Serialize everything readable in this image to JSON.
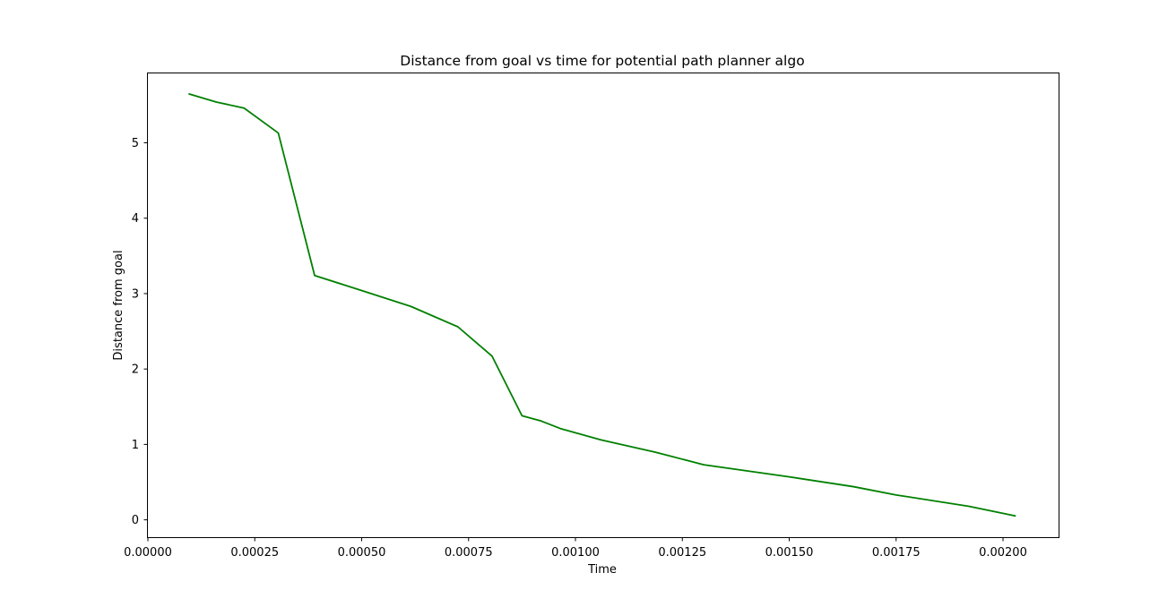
{
  "chart_data": {
    "type": "line",
    "title": "Distance from goal vs time for potential path planner algo",
    "xlabel": "Time",
    "ylabel": "Distance from goal",
    "xlim": [
      0.0,
      0.00213
    ],
    "ylim": [
      -0.23,
      5.92
    ],
    "grid": false,
    "line_color": "#008000",
    "x_ticks": [
      {
        "value": 0.0,
        "label": "0.00000"
      },
      {
        "value": 0.00025,
        "label": "0.00025"
      },
      {
        "value": 0.0005,
        "label": "0.00050"
      },
      {
        "value": 0.00075,
        "label": "0.00075"
      },
      {
        "value": 0.001,
        "label": "0.00100"
      },
      {
        "value": 0.00125,
        "label": "0.00125"
      },
      {
        "value": 0.0015,
        "label": "0.00150"
      },
      {
        "value": 0.00175,
        "label": "0.00175"
      },
      {
        "value": 0.002,
        "label": "0.00200"
      }
    ],
    "y_ticks": [
      {
        "value": 0,
        "label": "0"
      },
      {
        "value": 1,
        "label": "1"
      },
      {
        "value": 2,
        "label": "2"
      },
      {
        "value": 3,
        "label": "3"
      },
      {
        "value": 4,
        "label": "4"
      },
      {
        "value": 5,
        "label": "5"
      }
    ],
    "series": [
      {
        "x": [
          9.5e-05,
          0.00016,
          0.000225,
          0.000305,
          0.00039,
          0.000495,
          0.000615,
          0.000725,
          0.000805,
          0.000875,
          0.00092,
          0.000965,
          0.00106,
          0.001185,
          0.0013,
          0.0014,
          0.0015,
          0.00165,
          0.00175,
          0.00192,
          0.00203
        ],
        "y": [
          5.65,
          5.54,
          5.46,
          5.13,
          3.24,
          3.05,
          2.83,
          2.56,
          2.17,
          1.38,
          1.31,
          1.21,
          1.06,
          0.9,
          0.73,
          0.65,
          0.57,
          0.44,
          0.33,
          0.18,
          0.05
        ]
      }
    ]
  }
}
